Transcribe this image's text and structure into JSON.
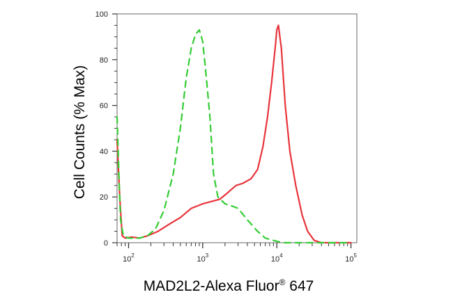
{
  "chart_data": {
    "type": "line",
    "title": "",
    "xlabel": {
      "main": "MAD2L2-Alexa Fluor",
      "superscript": "®",
      "suffix": " 647"
    },
    "ylabel": "Cell Counts (% Max)",
    "x_scale": "log",
    "xlim": [
      70,
      120000
    ],
    "ylim": [
      0,
      100
    ],
    "x_ticks": [
      {
        "value": 100,
        "base": "10",
        "exp": "2"
      },
      {
        "value": 1000,
        "base": "10",
        "exp": "3"
      },
      {
        "value": 10000,
        "base": "10",
        "exp": "4"
      },
      {
        "value": 100000,
        "base": "10",
        "exp": "5"
      }
    ],
    "y_ticks": [
      0,
      20,
      40,
      60,
      80,
      100
    ],
    "series": [
      {
        "color": "#e8333a",
        "line_style": "solid",
        "points": [
          [
            70,
            45
          ],
          [
            76,
            20
          ],
          [
            82,
            3
          ],
          [
            90,
            2
          ],
          [
            110,
            2.5
          ],
          [
            140,
            2
          ],
          [
            180,
            3
          ],
          [
            250,
            5
          ],
          [
            350,
            8
          ],
          [
            500,
            11
          ],
          [
            700,
            15
          ],
          [
            1000,
            17
          ],
          [
            1300,
            18
          ],
          [
            1700,
            19
          ],
          [
            2200,
            22
          ],
          [
            2800,
            25
          ],
          [
            3500,
            26
          ],
          [
            4500,
            28
          ],
          [
            5500,
            32
          ],
          [
            6500,
            42
          ],
          [
            7500,
            55
          ],
          [
            8500,
            70
          ],
          [
            9500,
            85
          ],
          [
            10000,
            93
          ],
          [
            10500,
            95
          ],
          [
            11500,
            85
          ],
          [
            13000,
            60
          ],
          [
            15000,
            40
          ],
          [
            18000,
            25
          ],
          [
            22000,
            12
          ],
          [
            26000,
            5
          ],
          [
            32000,
            1
          ],
          [
            40000,
            0
          ],
          [
            100000,
            0
          ]
        ]
      },
      {
        "color": "#33cc33",
        "line_style": "dashed",
        "points": [
          [
            70,
            55
          ],
          [
            74,
            30
          ],
          [
            78,
            10
          ],
          [
            85,
            3
          ],
          [
            100,
            2
          ],
          [
            140,
            2
          ],
          [
            180,
            3
          ],
          [
            230,
            6
          ],
          [
            300,
            14
          ],
          [
            400,
            30
          ],
          [
            500,
            50
          ],
          [
            600,
            72
          ],
          [
            700,
            85
          ],
          [
            800,
            91
          ],
          [
            900,
            93
          ],
          [
            1000,
            88
          ],
          [
            1100,
            75
          ],
          [
            1250,
            55
          ],
          [
            1400,
            30
          ],
          [
            1600,
            20
          ],
          [
            2000,
            17
          ],
          [
            2500,
            16
          ],
          [
            3000,
            15
          ],
          [
            4000,
            10
          ],
          [
            5500,
            5
          ],
          [
            7000,
            2
          ],
          [
            9000,
            1
          ],
          [
            12000,
            0
          ],
          [
            100000,
            0
          ]
        ]
      }
    ]
  }
}
